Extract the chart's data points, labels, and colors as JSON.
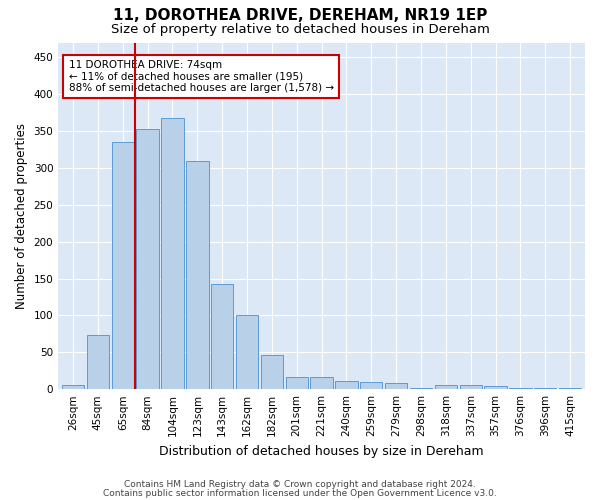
{
  "title": "11, DOROTHEA DRIVE, DEREHAM, NR19 1EP",
  "subtitle": "Size of property relative to detached houses in Dereham",
  "xlabel": "Distribution of detached houses by size in Dereham",
  "ylabel": "Number of detached properties",
  "categories": [
    "26sqm",
    "45sqm",
    "65sqm",
    "84sqm",
    "104sqm",
    "123sqm",
    "143sqm",
    "162sqm",
    "182sqm",
    "201sqm",
    "221sqm",
    "240sqm",
    "259sqm",
    "279sqm",
    "298sqm",
    "318sqm",
    "337sqm",
    "357sqm",
    "376sqm",
    "396sqm",
    "415sqm"
  ],
  "values": [
    5,
    74,
    335,
    353,
    368,
    310,
    143,
    100,
    46,
    16,
    17,
    11,
    10,
    8,
    2,
    6,
    5,
    4,
    1,
    1,
    2
  ],
  "bar_color": "#b8d0e8",
  "bar_edge_color": "#5b9bd5",
  "vline_color": "#cc0000",
  "vline_x": 2.5,
  "annotation_text": "11 DOROTHEA DRIVE: 74sqm\n← 11% of detached houses are smaller (195)\n88% of semi-detached houses are larger (1,578) →",
  "annotation_box_color": "#ffffff",
  "annotation_box_edge_color": "#cc0000",
  "footer_line1": "Contains HM Land Registry data © Crown copyright and database right 2024.",
  "footer_line2": "Contains public sector information licensed under the Open Government Licence v3.0.",
  "ylim": [
    0,
    470
  ],
  "yticks": [
    0,
    50,
    100,
    150,
    200,
    250,
    300,
    350,
    400,
    450
  ],
  "bg_color": "#dce8f5",
  "grid_color": "#ffffff",
  "title_fontsize": 11,
  "subtitle_fontsize": 9.5,
  "tick_fontsize": 7.5,
  "ylabel_fontsize": 8.5,
  "xlabel_fontsize": 9,
  "footer_fontsize": 6.5
}
